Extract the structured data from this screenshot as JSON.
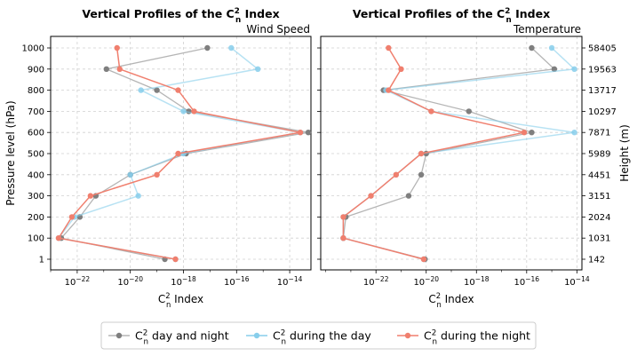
{
  "chart_data": [
    {
      "type": "line",
      "title": "Vertical Profiles of the C",
      "title_sub": "n",
      "title_sup": "2",
      "title_suffix": " Index",
      "subtitle": "Wind Speed",
      "xlabel": "C",
      "xlabel_sub": "n",
      "xlabel_sup": "2",
      "xlabel_suffix": " Index",
      "ylabel": "Pressure level (hPa)",
      "x_scale": "log",
      "xlim_exp": [
        -23.0,
        -13.2
      ],
      "x_ticks_exp": [
        -22,
        -20,
        -18,
        -16,
        -14
      ],
      "y_ticks": [
        "1",
        "100",
        "200",
        "300",
        "400",
        "500",
        "600",
        "700",
        "800",
        "900",
        "1000"
      ],
      "grid": true,
      "series": [
        {
          "name": "day and night",
          "color": "#b5b5b5",
          "marker_color": "#7f7f7f",
          "x_exp": [
            -18.7,
            -22.6,
            -21.9,
            -21.3,
            -20.0,
            -17.9,
            -13.3,
            -17.8,
            -19.0,
            -20.9,
            -17.1
          ]
        },
        {
          "name": "during  the day",
          "color": "#87ceeb",
          "marker_color": "#87ceeb",
          "x_exp": [
            -18.3,
            -22.7,
            -22.1,
            -19.7,
            -20.0,
            -18.0,
            -13.6,
            -18.0,
            -19.6,
            -15.2,
            -16.2
          ]
        },
        {
          "name": "during the night",
          "color": "#f07f6e",
          "marker_color": "#f07f6e",
          "x_exp": [
            -18.3,
            -22.7,
            -22.2,
            -21.5,
            -19.0,
            -18.2,
            -13.6,
            -17.6,
            -18.2,
            -20.4,
            -20.5
          ]
        }
      ]
    },
    {
      "type": "line",
      "title": "Vertical Profiles of the C",
      "title_sub": "n",
      "title_sup": "2",
      "title_suffix": " Index",
      "subtitle": "Temperature",
      "xlabel": "C",
      "xlabel_sub": "n",
      "xlabel_sup": "2",
      "xlabel_suffix": " Index",
      "ylabel": "Height (m)",
      "x_scale": "log",
      "xlim_exp": [
        -24.2,
        -13.8
      ],
      "x_ticks_exp": [
        -22,
        -20,
        -18,
        -16,
        -14
      ],
      "y_ticks": [
        "142",
        "1031",
        "2024",
        "3151",
        "4451",
        "5989",
        "7871",
        "10297",
        "13717",
        "19563",
        "58405"
      ],
      "grid": true,
      "series": [
        {
          "name": "day and night",
          "color": "#b5b5b5",
          "marker_color": "#7f7f7f",
          "x_exp": [
            -20.05,
            -23.3,
            -23.2,
            -20.7,
            -20.2,
            -20.0,
            -15.8,
            -18.3,
            -21.7,
            -14.9,
            -15.8
          ]
        },
        {
          "name": "during  the day",
          "color": "#87ceeb",
          "marker_color": "#87ceeb",
          "x_exp": [
            -20.1,
            -23.3,
            -23.3,
            -22.2,
            -21.2,
            -20.2,
            -14.1,
            -19.8,
            -21.6,
            -14.1,
            -15.0
          ]
        },
        {
          "name": "during the night",
          "color": "#f07f6e",
          "marker_color": "#f07f6e",
          "x_exp": [
            -20.1,
            -23.3,
            -23.3,
            -22.2,
            -21.2,
            -20.2,
            -16.1,
            -19.8,
            -21.5,
            -21.0,
            -21.5
          ]
        }
      ]
    }
  ],
  "legend": {
    "items": [
      {
        "prefix": "C",
        "sub": "n",
        "sup": "2",
        "suffix": " day and night",
        "color": "#b5b5b5",
        "marker_color": "#7f7f7f"
      },
      {
        "prefix": "C",
        "sub": "n",
        "sup": "2",
        "suffix": " during  the day",
        "color": "#87ceeb",
        "marker_color": "#87ceeb"
      },
      {
        "prefix": "C",
        "sub": "n",
        "sup": "2",
        "suffix": " during the night",
        "color": "#f07f6e",
        "marker_color": "#f07f6e"
      }
    ]
  }
}
